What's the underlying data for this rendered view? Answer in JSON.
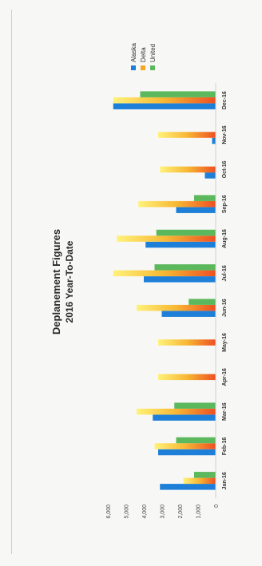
{
  "chart_data": {
    "type": "bar",
    "orientation": "rotated-90-ccw",
    "title": "Deplanement Figures",
    "subtitle": "2016 Year-To-Date",
    "categories": [
      "Jan-16",
      "Feb-16",
      "Mar-16",
      "Apr-16",
      "May-16",
      "Jun-16",
      "Jul-16",
      "Aug-16",
      "Sep-16",
      "Oct-16",
      "Nov-16",
      "Dec-16"
    ],
    "series": [
      {
        "name": "Alaska",
        "color": "#1e7fd8",
        "values": [
          3100,
          3200,
          3500,
          0,
          0,
          3000,
          4000,
          3900,
          2200,
          600,
          200,
          5700
        ]
      },
      {
        "name": "Delta",
        "color": "#f5a623",
        "values": [
          1800,
          3400,
          4400,
          3200,
          3200,
          4400,
          5700,
          5500,
          4300,
          3100,
          3200,
          5700
        ]
      },
      {
        "name": "United",
        "color": "#5cb85c",
        "values": [
          1200,
          2200,
          2300,
          0,
          0,
          1500,
          3400,
          3300,
          1200,
          0,
          0,
          4200
        ]
      }
    ],
    "y_ticks": [
      "0",
      "1,000",
      "2,000",
      "3,000",
      "4,000",
      "5,000",
      "6,000"
    ],
    "ylim": [
      0,
      6000
    ],
    "grid": false,
    "legend_position": "right"
  }
}
